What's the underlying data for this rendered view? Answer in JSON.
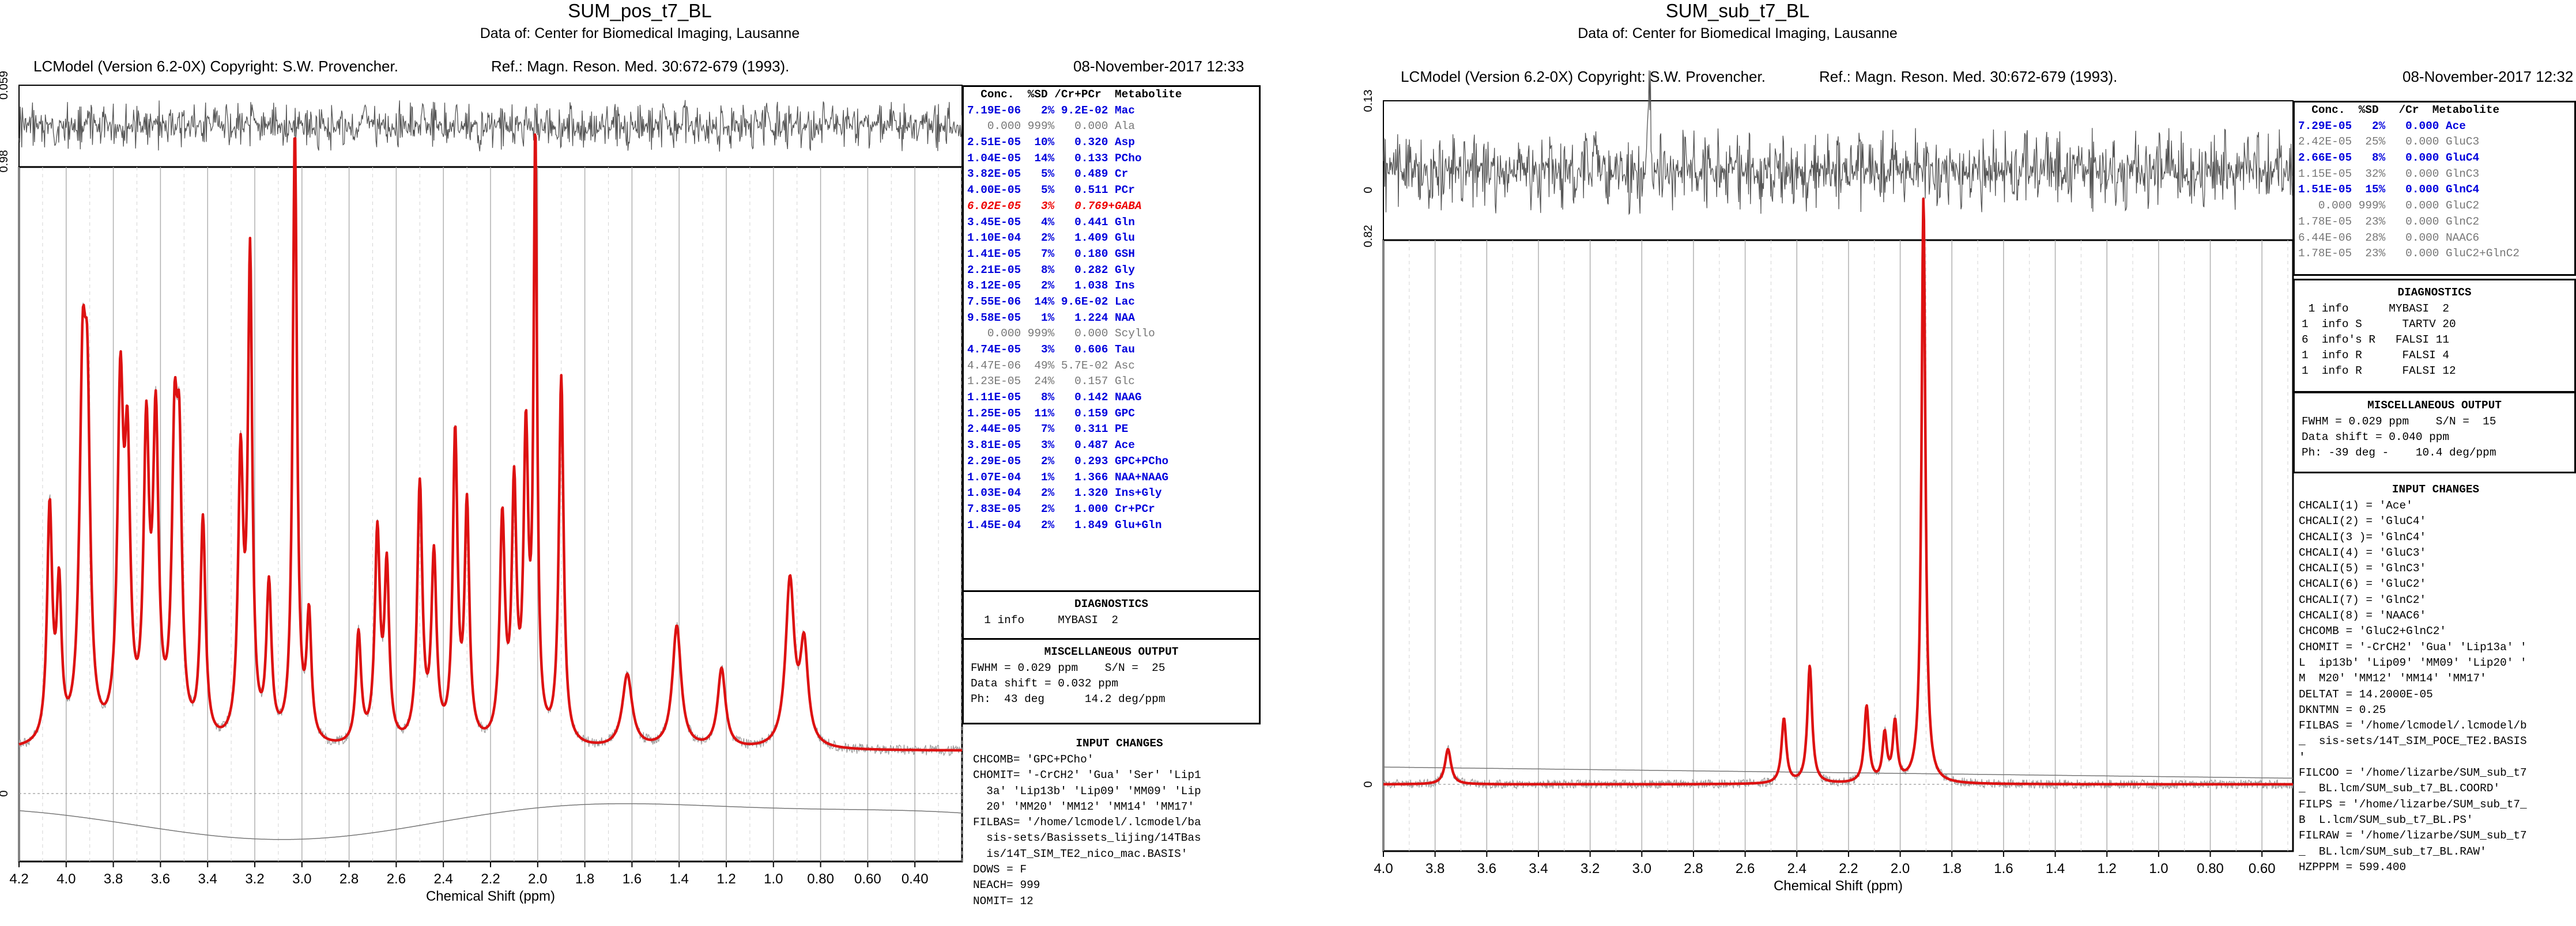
{
  "pages": [
    {
      "title": "SUM_pos_t7_BL",
      "subtitle": "Data of: Center for Biomedical Imaging, Lausanne",
      "header": {
        "program": "LCModel (Version 6.2-0X) Copyright: S.W. Provencher.",
        "reference": "Ref.: Magn. Reson. Med. 30:672-679 (1993).",
        "date": "08-November-2017  12:33"
      },
      "table_header": "  Conc.  %SD /Cr+PCr  Metabolite",
      "table_rows": [
        {
          "text": "7.19E-06   2% 9.2E-02 Mac",
          "style": "blue"
        },
        {
          "text": "   0.000 999%   0.000 Ala",
          "style": "gray"
        },
        {
          "text": "2.51E-05  10%   0.320 Asp",
          "style": "blue"
        },
        {
          "text": "1.04E-05  14%   0.133 PCho",
          "style": "blue"
        },
        {
          "text": "3.82E-05   5%   0.489 Cr",
          "style": "blue"
        },
        {
          "text": "4.00E-05   5%   0.511 PCr",
          "style": "blue"
        },
        {
          "text": "6.02E-05   3%   0.769+GABA",
          "style": "red"
        },
        {
          "text": "3.45E-05   4%   0.441 Gln",
          "style": "blue"
        },
        {
          "text": "1.10E-04   2%   1.409 Glu",
          "style": "blue"
        },
        {
          "text": "1.41E-05   7%   0.180 GSH",
          "style": "blue"
        },
        {
          "text": "2.21E-05   8%   0.282 Gly",
          "style": "blue"
        },
        {
          "text": "8.12E-05   2%   1.038 Ins",
          "style": "blue"
        },
        {
          "text": "7.55E-06  14% 9.6E-02 Lac",
          "style": "blue"
        },
        {
          "text": "9.58E-05   1%   1.224 NAA",
          "style": "blue"
        },
        {
          "text": "   0.000 999%   0.000 Scyllo",
          "style": "gray"
        },
        {
          "text": "4.74E-05   3%   0.606 Tau",
          "style": "blue"
        },
        {
          "text": "4.47E-06  49% 5.7E-02 Asc",
          "style": "gray"
        },
        {
          "text": "1.23E-05  24%   0.157 Glc",
          "style": "gray"
        },
        {
          "text": "1.11E-05   8%   0.142 NAAG",
          "style": "blue"
        },
        {
          "text": "1.25E-05  11%   0.159 GPC",
          "style": "blue"
        },
        {
          "text": "2.44E-05   7%   0.311 PE",
          "style": "blue"
        },
        {
          "text": "3.81E-05   3%   0.487 Ace",
          "style": "blue"
        },
        {
          "text": "2.29E-05   2%   0.293 GPC+PCho",
          "style": "blue"
        },
        {
          "text": "1.07E-04   1%   1.366 NAA+NAAG",
          "style": "blue"
        },
        {
          "text": "1.03E-04   2%   1.320 Ins+Gly",
          "style": "blue"
        },
        {
          "text": "7.83E-05   2%   1.000 Cr+PCr",
          "style": "blue"
        },
        {
          "text": "1.45E-04   2%   1.849 Glu+Gln",
          "style": "blue"
        }
      ],
      "diagnostics": {
        "title": "DIAGNOSTICS",
        "lines": [
          "  1 info     MYBASI  2"
        ]
      },
      "misc": {
        "title": "MISCELLANEOUS OUTPUT",
        "lines": [
          "FWHM = 0.029 ppm    S/N =  25",
          "Data shift = 0.032 ppm",
          "Ph:  43 deg      14.2 deg/ppm"
        ]
      },
      "input_changes": {
        "title": "INPUT CHANGES",
        "lines": [
          "CHCOMB= 'GPC+PCho'",
          "CHOMIT= '-CrCH2' 'Gua' 'Ser' 'Lip1",
          "  3a' 'Lip13b' 'Lip09' 'MM09' 'Lip",
          "  20' 'MM20' 'MM12' 'MM14' 'MM17'",
          "FILBAS= '/home/lcmodel/.lcmodel/ba",
          "  sis-sets/Basissets_lijing/14TBas",
          "  is/14T_SIM_TE2_nico_mac.BASIS'",
          "DOWS = F",
          "NEACH= 999",
          "NOMIT= 12"
        ]
      },
      "chart_data": {
        "type": "line",
        "xlabel": "Chemical Shift (ppm)",
        "xlim": [
          4.2,
          0.2
        ],
        "ticks": [
          "4.2",
          "4.0",
          "3.8",
          "3.6",
          "3.4",
          "3.2",
          "3.0",
          "2.8",
          "2.6",
          "2.4",
          "2.2",
          "2.0",
          "1.8",
          "1.6",
          "1.4",
          "1.2",
          "1.0",
          "0.80",
          "0.60",
          "0.40"
        ],
        "tick_values": [
          4.2,
          4.0,
          3.8,
          3.6,
          3.4,
          3.2,
          3.0,
          2.8,
          2.6,
          2.4,
          2.2,
          2.0,
          1.8,
          1.6,
          1.4,
          1.2,
          1.0,
          0.8,
          0.6,
          0.4
        ],
        "residual_axis": [
          "0.059",
          "0.98"
        ],
        "main_axis": [
          "0"
        ],
        "series": [
          {
            "role": "fit",
            "color": "#dd1111",
            "baseline": 0.07,
            "peaks": [
              [
                4.07,
                0.38,
                0.013
              ],
              [
                4.03,
                0.24,
                0.012
              ],
              [
                3.93,
                0.55,
                0.016
              ],
              [
                3.91,
                0.45,
                0.014
              ],
              [
                3.77,
                0.55,
                0.015
              ],
              [
                3.74,
                0.42,
                0.014
              ],
              [
                3.66,
                0.48,
                0.014
              ],
              [
                3.62,
                0.5,
                0.014
              ],
              [
                3.54,
                0.45,
                0.014
              ],
              [
                3.52,
                0.4,
                0.013
              ],
              [
                3.42,
                0.36,
                0.013
              ],
              [
                3.26,
                0.45,
                0.013
              ],
              [
                3.22,
                0.78,
                0.011
              ],
              [
                3.14,
                0.25,
                0.013
              ],
              [
                3.03,
                1.0,
                0.011
              ],
              [
                2.97,
                0.2,
                0.012
              ],
              [
                2.76,
                0.18,
                0.013
              ],
              [
                2.68,
                0.34,
                0.013
              ],
              [
                2.64,
                0.28,
                0.012
              ],
              [
                2.5,
                0.42,
                0.013
              ],
              [
                2.44,
                0.3,
                0.013
              ],
              [
                2.35,
                0.5,
                0.012
              ],
              [
                2.3,
                0.38,
                0.012
              ],
              [
                2.15,
                0.36,
                0.013
              ],
              [
                2.1,
                0.4,
                0.012
              ],
              [
                2.05,
                0.48,
                0.012
              ],
              [
                2.01,
                0.97,
                0.009
              ],
              [
                1.9,
                0.6,
                0.012
              ],
              [
                1.62,
                0.12,
                0.025
              ],
              [
                1.41,
                0.2,
                0.022
              ],
              [
                1.22,
                0.13,
                0.02
              ],
              [
                0.93,
                0.27,
                0.022
              ],
              [
                0.87,
                0.16,
                0.02
              ]
            ]
          },
          {
            "role": "baseline",
            "color": "#777777"
          }
        ]
      }
    },
    {
      "title": "SUM_sub_t7_BL",
      "subtitle": "Data of: Center for Biomedical Imaging, Lausanne",
      "header": {
        "program": "LCModel (Version 6.2-0X) Copyright: S.W. Provencher.",
        "reference": "Ref.: Magn. Reson. Med. 30:672-679 (1993).",
        "date": "08-November-2017  12:32"
      },
      "table_header": "  Conc.  %SD   /Cr  Metabolite",
      "table_rows": [
        {
          "text": "7.29E-05   2%   0.000 Ace",
          "style": "blue"
        },
        {
          "text": "2.42E-05  25%   0.000 GluC3",
          "style": "gray"
        },
        {
          "text": "2.66E-05   8%   0.000 GluC4",
          "style": "blue"
        },
        {
          "text": "1.15E-05  32%   0.000 GlnC3",
          "style": "gray"
        },
        {
          "text": "1.51E-05  15%   0.000 GlnC4",
          "style": "blue"
        },
        {
          "text": "   0.000 999%   0.000 GluC2",
          "style": "gray"
        },
        {
          "text": "1.78E-05  23%   0.000 GlnC2",
          "style": "gray"
        },
        {
          "text": "6.44E-06  28%   0.000 NAAC6",
          "style": "gray"
        },
        {
          "text": "1.78E-05  23%   0.000 GluC2+GlnC2",
          "style": "gray"
        }
      ],
      "diagnostics": {
        "title": "DIAGNOSTICS",
        "lines": [
          " 1 info      MYBASI  2",
          "1  info S      TARTV 20",
          "6  info's R   FALSI 11",
          "1  info R      FALSI 4",
          "1  info R      FALSI 12"
        ]
      },
      "misc": {
        "title": "MISCELLANEOUS OUTPUT",
        "lines": [
          "FWHM = 0.029 ppm    S/N =  15",
          "Data shift = 0.040 ppm",
          "Ph: -39 deg -    10.4 deg/ppm"
        ]
      },
      "input_changes": {
        "title": "INPUT CHANGES",
        "lines": [
          "CHCALI(1) = 'Ace'",
          "CHCALI(2) = 'GluC4'",
          "CHCALI(3 )= 'GlnC4'",
          "CHCALI(4) = 'GluC3'",
          "CHCALI(5) = 'GlnC3'",
          "CHCALI(6) = 'GluC2'",
          "CHCALI(7) = 'GlnC2'",
          "CHCALI(8) = 'NAAC6'",
          "CHCOMB = 'GluC2+GlnC2'",
          "CHOMIT = '-CrCH2' 'Gua' 'Lip13a' '",
          "L  ip13b' 'Lip09' 'MM09' 'Lip20' '",
          "M  M20' 'MM12' 'MM14' 'MM17'",
          "DELTAT = 14.2000E-05",
          "DKNTMN = 0.25",
          "FILBAS = '/home/lcmodel/.lcmodel/b",
          "_  sis-sets/14T_SIM_POCE_TE2.BASIS",
          "'",
          "FILCOO = '/home/lizarbe/SUM_sub_t7",
          "_  BL.lcm/SUM_sub_t7_BL.COORD'",
          "FILPS = '/home/lizarbe/SUM_sub_t7_",
          "B  L.lcm/SUM_sub_t7_BL.PS'",
          "FILRAW = '/home/lizarbe/SUM_sub_t7",
          "_  BL.lcm/SUM_sub_t7_BL.RAW'",
          "HZPPPM = 599.400"
        ]
      },
      "chart_data": {
        "type": "line",
        "xlabel": "Chemical Shift (ppm)",
        "xlim": [
          4.0,
          0.48
        ],
        "ticks": [
          "4.0",
          "3.8",
          "3.6",
          "3.4",
          "3.2",
          "3.0",
          "2.8",
          "2.6",
          "2.4",
          "2.2",
          "2.0",
          "1.8",
          "1.6",
          "1.4",
          "1.2",
          "1.0",
          "0.80",
          "0.60"
        ],
        "tick_values": [
          4.0,
          3.8,
          3.6,
          3.4,
          3.2,
          3.0,
          2.8,
          2.6,
          2.4,
          2.2,
          2.0,
          1.8,
          1.6,
          1.4,
          1.2,
          1.0,
          0.8,
          0.6
        ],
        "residual_axis": [
          "0.13",
          "0",
          "0.82"
        ],
        "main_axis": [
          "0"
        ],
        "series": [
          {
            "role": "fit",
            "color": "#dd1111",
            "baseline": 0.0,
            "peaks": [
              [
                3.75,
                0.06,
                0.014
              ],
              [
                2.45,
                0.11,
                0.011
              ],
              [
                2.35,
                0.2,
                0.011
              ],
              [
                2.13,
                0.13,
                0.011
              ],
              [
                2.06,
                0.08,
                0.01
              ],
              [
                2.02,
                0.1,
                0.01
              ],
              [
                1.91,
                1.0,
                0.009
              ]
            ]
          },
          {
            "role": "baseline",
            "color": "#777777"
          }
        ]
      }
    }
  ]
}
